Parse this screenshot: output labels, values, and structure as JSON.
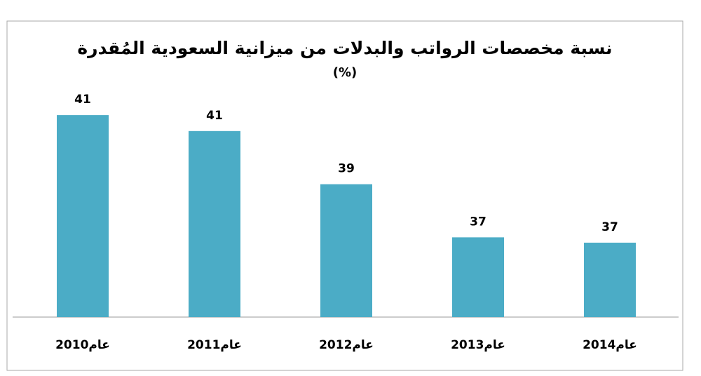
{
  "chart_data": {
    "type": "bar",
    "title": "نسبة مخصصات الرواتب والبدلات من ميزانية السعودية المُقدرة",
    "subtitle": "(%)",
    "categories": [
      "2010عام",
      "2011عام",
      "2012عام",
      "2013عام",
      "2014عام"
    ],
    "values": [
      41.4,
      40.8,
      38.8,
      36.8,
      36.6
    ],
    "value_labels": [
      "41",
      "41",
      "39",
      "37",
      "37"
    ],
    "color": "#4bacc6",
    "ylim": [
      33.8,
      42.3
    ]
  }
}
